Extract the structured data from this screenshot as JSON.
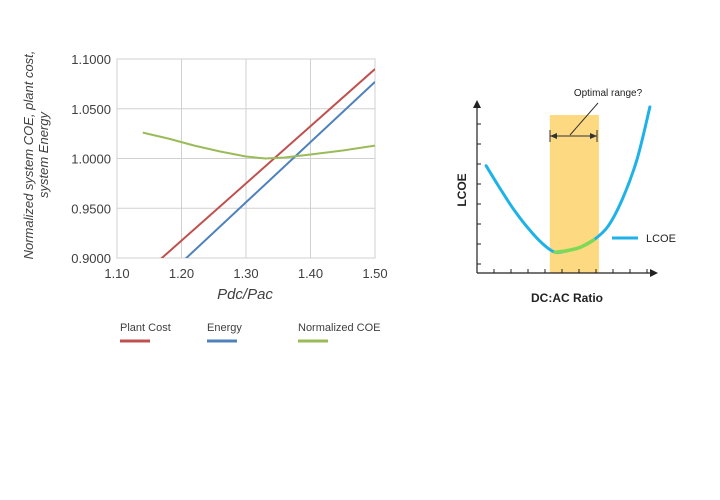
{
  "chart_data": [
    {
      "type": "line",
      "title": "",
      "xlabel": "Pdc/Pac",
      "ylabel": [
        "Normalized system COE, plant cost,",
        "system Energy"
      ],
      "xlim": [
        1.1,
        1.5
      ],
      "ylim": [
        0.9,
        1.1
      ],
      "x_ticks": [
        "1.10",
        "1.20",
        "1.30",
        "1.40",
        "1.50"
      ],
      "y_ticks": [
        "0.9000",
        "0.9500",
        "1.0000",
        "1.0500",
        "1.1000"
      ],
      "grid": true,
      "legend_position": "bottom",
      "series": [
        {
          "name": "Plant Cost",
          "color": "#c0504d",
          "x": [
            1.1,
            1.5
          ],
          "y": [
            0.86,
            1.09
          ]
        },
        {
          "name": "Energy",
          "color": "#4f81bd",
          "x": [
            1.1,
            1.5
          ],
          "y": [
            0.835,
            1.077
          ]
        },
        {
          "name": "Normalized COE",
          "color": "#9bbb59",
          "x": [
            1.14,
            1.18,
            1.22,
            1.26,
            1.3,
            1.33,
            1.36,
            1.4,
            1.45,
            1.5
          ],
          "y": [
            1.026,
            1.02,
            1.013,
            1.007,
            1.002,
            1.0,
            1.001,
            1.004,
            1.008,
            1.013
          ]
        }
      ]
    },
    {
      "type": "line",
      "title": "",
      "xlabel": "DC:AC Ratio",
      "ylabel": "LCOE",
      "grid": false,
      "legend_position": "right",
      "annotation": "Optimal range?",
      "optimal_range": [
        0.4,
        0.67
      ],
      "series": [
        {
          "name": "LCOE",
          "color": "#1fb2e8",
          "x": [
            0.05,
            0.12,
            0.2,
            0.28,
            0.36,
            0.43,
            0.5,
            0.57,
            0.64,
            0.72,
            0.8,
            0.88,
            0.95
          ],
          "y": [
            0.62,
            0.5,
            0.37,
            0.26,
            0.17,
            0.12,
            0.13,
            0.15,
            0.19,
            0.27,
            0.43,
            0.66,
            0.96
          ]
        },
        {
          "color": "#7ed957",
          "x": [
            0.43,
            0.5,
            0.57,
            0.64
          ],
          "y": [
            0.12,
            0.13,
            0.15,
            0.19
          ]
        }
      ]
    }
  ]
}
